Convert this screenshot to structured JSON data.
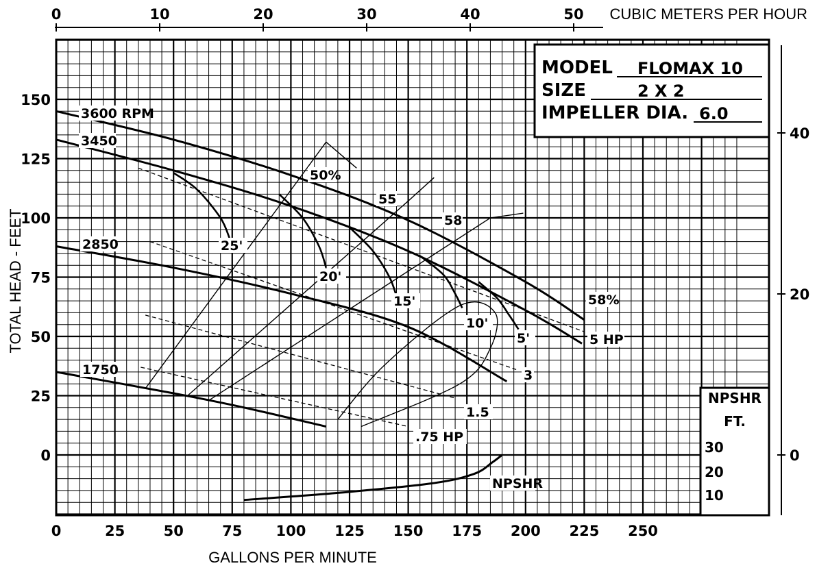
{
  "chart_data": {
    "type": "line",
    "title": "",
    "xlabel": "GALLONS PER MINUTE",
    "ylabel": "TOTAL HEAD - FEET",
    "top_axis_label": "CUBIC METERS PER HOUR",
    "xlim": [
      0,
      290
    ],
    "ylim": [
      -25,
      175
    ],
    "grid": true,
    "x_ticks": [
      0,
      25,
      50,
      75,
      100,
      125,
      150,
      175,
      200,
      225,
      250
    ],
    "x_tick_labels": [
      "0",
      "25",
      "50",
      "75",
      "100",
      "125",
      "150",
      "175",
      "200",
      "225",
      "250"
    ],
    "y_ticks": [
      0,
      25,
      50,
      75,
      100,
      125,
      150
    ],
    "y_tick_labels": [
      "0",
      "25",
      "50",
      "75",
      "100",
      "125",
      "150"
    ],
    "top_ticks": [
      0,
      10,
      20,
      30,
      40,
      50
    ],
    "top_tick_labels": [
      "0",
      "10",
      "20",
      "30",
      "40",
      "50"
    ],
    "right_ticks": [
      0,
      20,
      40
    ],
    "right_tick_labels": [
      "0",
      "20",
      "40"
    ],
    "info_box": {
      "model_label": "MODEL",
      "model_value": "FLOMAX 10",
      "size_label": "SIZE",
      "size_value": "2 X 2",
      "impeller_label": "IMPELLER DIA.",
      "impeller_value": "6.0"
    },
    "npshr_scale": {
      "title_line1": "NPSHR",
      "title_line2": "FT.",
      "labels": [
        "30",
        "20",
        "10"
      ],
      "values": [
        30,
        20,
        10
      ]
    },
    "series": [
      {
        "name": "3600 RPM",
        "x": [
          0,
          50,
          100,
          150,
          200,
          225
        ],
        "y": [
          145,
          133,
          118,
          99,
          73,
          57
        ]
      },
      {
        "name": "3450",
        "x": [
          0,
          50,
          100,
          150,
          200,
          224
        ],
        "y": [
          133,
          120,
          105,
          86,
          61,
          47
        ]
      },
      {
        "name": "2850",
        "x": [
          0,
          50,
          100,
          150,
          192
        ],
        "y": [
          88,
          79,
          68,
          54,
          31
        ]
      },
      {
        "name": "1750",
        "x": [
          0,
          50,
          80,
          115
        ],
        "y": [
          35,
          26,
          20,
          12
        ]
      }
    ],
    "efficiency_curves": [
      {
        "name": "50%",
        "x": [
          38,
          115,
          128
        ],
        "y": [
          28,
          132,
          121
        ]
      },
      {
        "name": "55",
        "x": [
          56,
          151,
          161
        ],
        "y": [
          25,
          108,
          117
        ]
      },
      {
        "name": "58",
        "x": [
          65,
          185,
          199
        ],
        "y": [
          23,
          100,
          102
        ]
      },
      {
        "name": "58%",
        "x": [
          120,
          140,
          172,
          187,
          185,
          172,
          130
        ],
        "y": [
          15,
          38,
          63,
          60,
          45,
          30,
          12
        ]
      }
    ],
    "npsh_curves": [
      {
        "name": "25'",
        "x": [
          50,
          60,
          70,
          74
        ],
        "y": [
          119,
          112,
          100,
          91
        ]
      },
      {
        "name": "20'",
        "x": [
          95,
          105,
          112,
          115
        ],
        "y": [
          110,
          100,
          88,
          79
        ]
      },
      {
        "name": "15'",
        "x": [
          125,
          135,
          142,
          145
        ],
        "y": [
          96,
          86,
          75,
          67
        ]
      },
      {
        "name": "10'",
        "x": [
          155,
          165,
          170,
          173
        ],
        "y": [
          84,
          76,
          68,
          62
        ]
      },
      {
        "name": "5'",
        "x": [
          180,
          188,
          193,
          197
        ],
        "y": [
          73,
          66,
          59,
          53
        ]
      }
    ],
    "hp_lines": [
      {
        "name": "5 HP",
        "x": [
          35,
          225
        ],
        "y": [
          121,
          52
        ]
      },
      {
        "name": "3",
        "x": [
          40,
          196
        ],
        "y": [
          90,
          36
        ]
      },
      {
        "name": "1.5",
        "x": [
          38,
          170
        ],
        "y": [
          59,
          24
        ]
      },
      {
        "name": ".75 HP",
        "x": [
          36,
          150
        ],
        "y": [
          37,
          12
        ]
      }
    ],
    "npshr_curve": {
      "name": "NPSHR",
      "x": [
        80,
        120,
        160,
        178,
        186,
        190
      ],
      "y": [
        -19,
        -16,
        -12,
        -8,
        -3,
        0
      ]
    }
  }
}
